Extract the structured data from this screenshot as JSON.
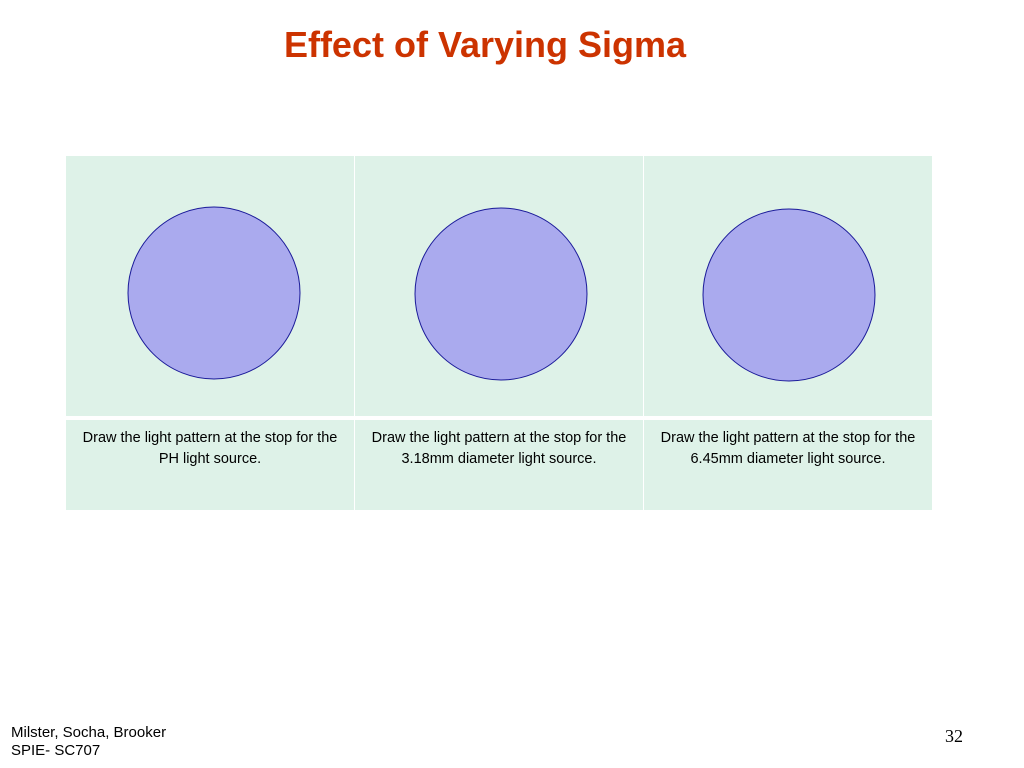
{
  "slide": {
    "title": "Effect of Varying Sigma",
    "columns": [
      {
        "caption": "Draw the light pattern at the stop for the PH light source."
      },
      {
        "caption": "Draw the light pattern at the stop for the 3.18mm diameter light source."
      },
      {
        "caption": "Draw the light pattern at the stop for the 6.45mm diameter light source."
      }
    ],
    "colors": {
      "title": "#cc3300",
      "cell_fill": "#def2e8",
      "circle_fill": "#aaaaee",
      "circle_stroke": "#1a1a99"
    },
    "footer": {
      "line1": "Milster, Socha, Brooker",
      "line2": "SPIE- SC707"
    },
    "page_number": "32"
  }
}
